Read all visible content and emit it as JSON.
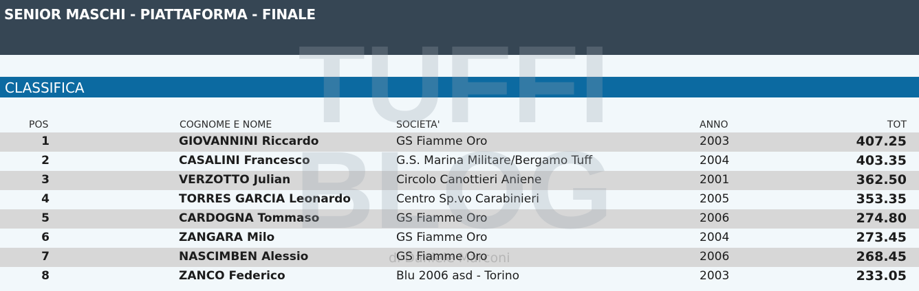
{
  "header": {
    "title": "SENIOR MASCHI - PIATTAFORMA - FINALE"
  },
  "section": {
    "title": "CLASSIFICA"
  },
  "columns": {
    "pos": "POS",
    "name": "COGNOME E NOME",
    "club": "SOCIETA'",
    "year": "ANNO",
    "tot": "TOT"
  },
  "watermark": {
    "line1": "TUFFI",
    "line2": "BLOG",
    "credit": "di Daniele Marconi"
  },
  "rows": [
    {
      "pos": "1",
      "name": "GIOVANNINI Riccardo",
      "club": "GS Fiamme Oro",
      "year": "2003",
      "tot": "407.25"
    },
    {
      "pos": "2",
      "name": "CASALINI Francesco",
      "club": "G.S. Marina Militare/Bergamo Tuff",
      "year": "2004",
      "tot": "403.35"
    },
    {
      "pos": "3",
      "name": "VERZOTTO Julian",
      "club": "Circolo Canottieri Aniene",
      "year": "2001",
      "tot": "362.50"
    },
    {
      "pos": "4",
      "name": "TORRES GARCIA Leonardo",
      "club": "Centro Sp.vo Carabinieri",
      "year": "2005",
      "tot": "353.35"
    },
    {
      "pos": "5",
      "name": "CARDOGNA Tommaso",
      "club": "GS Fiamme Oro",
      "year": "2006",
      "tot": "274.80"
    },
    {
      "pos": "6",
      "name": "ZANGARA Milo",
      "club": "GS Fiamme Oro",
      "year": "2004",
      "tot": "273.45"
    },
    {
      "pos": "7",
      "name": "NASCIMBEN Alessio",
      "club": "GS Fiamme Oro",
      "year": "2006",
      "tot": "268.45"
    },
    {
      "pos": "8",
      "name": "ZANCO Federico",
      "club": "Blu 2006 asd - Torino",
      "year": "2003",
      "tot": "233.05"
    }
  ],
  "colors": {
    "header_bg": "#364654",
    "section_bg": "#0c6aa1",
    "row_shaded": "#d7d7d7",
    "page_bg": "#f2f8fb"
  }
}
